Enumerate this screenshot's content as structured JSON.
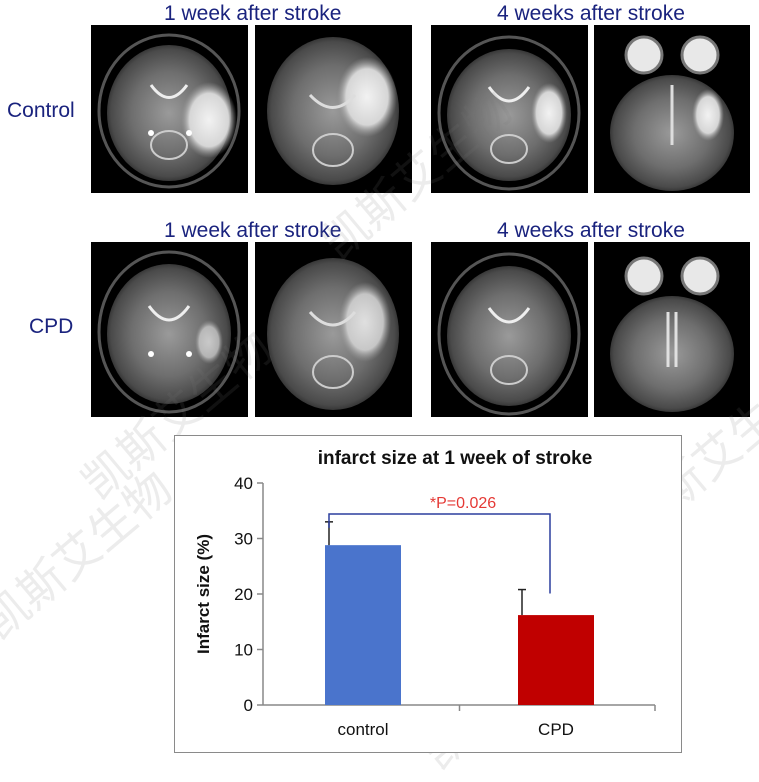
{
  "panel_labels": {
    "top_left": "1 week after stroke",
    "top_right": "4 weeks after stroke",
    "bottom_left": "1 week after stroke",
    "bottom_right": "4 weeks after stroke"
  },
  "rows": {
    "control": "Control",
    "cpd": "CPD"
  },
  "watermark_text": "凯斯艾生物",
  "colors": {
    "label_navy": "#1a237e",
    "control_bar": "#4a74cc",
    "cpd_bar": "#c00000",
    "significance": "#e53935",
    "bracket": "#2b3f9e"
  },
  "chart_data": {
    "type": "bar",
    "title": "infarct size at 1 week of stroke",
    "categories": [
      "control",
      "CPD"
    ],
    "values": [
      28.8,
      16.2
    ],
    "errors": [
      4.2,
      4.6
    ],
    "xlabel": "",
    "ylabel": "Infarct size (%)",
    "ylim": [
      0,
      40
    ],
    "yticks": [
      0,
      10,
      20,
      30,
      40
    ],
    "ytick_labels": [
      "0",
      "10",
      "20",
      "30",
      "40"
    ],
    "annotation": "*P=0.026",
    "grid": false
  }
}
